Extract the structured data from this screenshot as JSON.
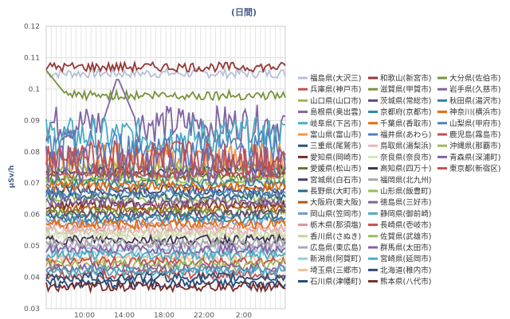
{
  "chart_data": {
    "type": "line",
    "title": "(日間)",
    "ylabel": "μSv/h",
    "xlabel": "",
    "ylim": [
      0.03,
      0.12
    ],
    "y_ticks": [
      "0.03",
      "0.04",
      "0.05",
      "0.06",
      "0.07",
      "0.08",
      "0.09",
      "0.1",
      "0.11",
      "0.12"
    ],
    "x_ticks": [
      "10:00",
      "14:00",
      "18:00",
      "22:00",
      "2:00"
    ],
    "grid": true,
    "legend_placement": "right",
    "series": [
      {
        "name": "福島県(大沢三)",
        "color": "#b9bfd6",
        "level": 0.105
      },
      {
        "name": "兵庫県(神戸市)",
        "color": "#c0504d",
        "level": 0.041
      },
      {
        "name": "山口県(山口市)",
        "color": "#9bbb59",
        "level": 0.065
      },
      {
        "name": "島根県(奥出雲)",
        "color": "#8064a2",
        "level": 0.089
      },
      {
        "name": "岐阜県(下呂市)",
        "color": "#4bacc6",
        "level": 0.085
      },
      {
        "name": "富山県(富山市)",
        "color": "#f79646",
        "level": 0.077
      },
      {
        "name": "三重県(尾鷲市)",
        "color": "#2c4d75",
        "level": 0.074
      },
      {
        "name": "愛知県(岡崎市)",
        "color": "#772c2a",
        "level": 0.063
      },
      {
        "name": "愛媛県(松山市)",
        "color": "#5f7530",
        "level": 0.072
      },
      {
        "name": "宮城県(白石市)",
        "color": "#4d3b62",
        "level": 0.068
      },
      {
        "name": "長野県(大町市)",
        "color": "#276a7c",
        "level": 0.066
      },
      {
        "name": "大阪府(東大阪)",
        "color": "#b65708",
        "level": 0.062
      },
      {
        "name": "岡山県(笠岡市)",
        "color": "#729aca",
        "level": 0.058
      },
      {
        "name": "栃木県(那須塩)",
        "color": "#d99694",
        "level": 0.056
      },
      {
        "name": "香川県(さぬき)",
        "color": "#c3d69b",
        "level": 0.054
      },
      {
        "name": "広島県(東広島)",
        "color": "#b3a2c7",
        "level": 0.05
      },
      {
        "name": "新潟県(阿賀町)",
        "color": "#93cddd",
        "level": 0.048
      },
      {
        "name": "埼玉県(三郷市)",
        "color": "#fac090",
        "level": 0.046
      },
      {
        "name": "石川県(津幡町)",
        "color": "#1f497d",
        "level": 0.038
      },
      {
        "name": "和歌山(新宮市)",
        "color": "#953735",
        "level": 0.107
      },
      {
        "name": "滋賀県(甲賀市)",
        "color": "#77933c",
        "level": 0.061
      },
      {
        "name": "茨城県(常総市)",
        "color": "#604a7b",
        "level": 0.06
      },
      {
        "name": "京都府(京都市)",
        "color": "#31859c",
        "level": 0.059
      },
      {
        "name": "千葉県(香取市)",
        "color": "#e46c0a",
        "level": 0.057
      },
      {
        "name": "福井県(あわら)",
        "color": "#4f81bd",
        "level": 0.081
      },
      {
        "name": "鳥取県(湯梨浜)",
        "color": "#e6b9b8",
        "level": 0.055
      },
      {
        "name": "奈良県(奈良市)",
        "color": "#d7e4bd",
        "level": 0.053
      },
      {
        "name": "高知県(四万十)",
        "color": "#403152",
        "level": 0.052
      },
      {
        "name": "福岡県(北九州)",
        "color": "#a6a6a6",
        "level": 0.051
      },
      {
        "name": "山形県(飯豊町)",
        "color": "#9bbb59",
        "level": 0.071
      },
      {
        "name": "徳島県(三好市)",
        "color": "#8064a2",
        "level": 0.049
      },
      {
        "name": "静岡県(御前崎)",
        "color": "#4bacc6",
        "level": 0.047
      },
      {
        "name": "長崎県(壱岐市)",
        "color": "#c0504d",
        "level": 0.045
      },
      {
        "name": "佐賀県(武雄市)",
        "color": "#9bbb59",
        "level": 0.044
      },
      {
        "name": "群馬県(太田市)",
        "color": "#8064a2",
        "level": 0.043
      },
      {
        "name": "宮崎県(延岡市)",
        "color": "#4bacc6",
        "level": 0.042
      },
      {
        "name": "北海道(稚内市)",
        "color": "#2c4d75",
        "level": 0.04
      },
      {
        "name": "熊本県(八代市)",
        "color": "#772c2a",
        "level": 0.037
      },
      {
        "name": "大分県(佐伯市)",
        "color": "#77933c",
        "level": 0.098
      },
      {
        "name": "岩手県(久慈市)",
        "color": "#8064a2",
        "level": 0.064
      },
      {
        "name": "秋田県(湯沢市)",
        "color": "#31859c",
        "level": 0.07
      },
      {
        "name": "神奈川(横浜市)",
        "color": "#e46c0a",
        "level": 0.069
      },
      {
        "name": "山梨県(甲府市)",
        "color": "#4f81bd",
        "level": 0.067
      },
      {
        "name": "鹿児島(霧島市)",
        "color": "#c0504d",
        "level": 0.073
      },
      {
        "name": "沖縄県(那覇市)",
        "color": "#9bbb59",
        "level": 0.075
      },
      {
        "name": "青森県(深浦町)",
        "color": "#8064a2",
        "level": 0.076
      },
      {
        "name": "東京都(新宿区)",
        "color": "#c0504d",
        "level": 0.078
      }
    ]
  }
}
